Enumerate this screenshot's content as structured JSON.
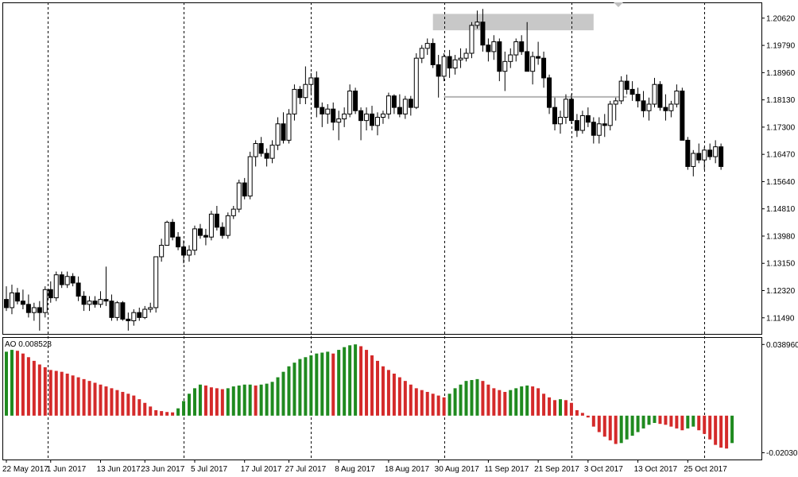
{
  "colors": {
    "background": "#ffffff",
    "frame": "#000000",
    "candle_up_fill": "#ffffff",
    "candle_down_fill": "#000000",
    "ao_up": "#1f8a1f",
    "ao_down": "#d42a2a",
    "zone_fill": "#c8c8c8",
    "hline": "#b4b4b4"
  },
  "indicator": {
    "label": "AO 0.008528"
  },
  "chart_data": [
    {
      "type": "candlestick",
      "title": "",
      "grid": "vertical dashed separators",
      "ylim": [
        1.11,
        1.211
      ],
      "y_ticks": [
        "1.20620",
        "1.19790",
        "1.18960",
        "1.18130",
        "1.17300",
        "1.16470",
        "1.15640",
        "1.14810",
        "1.13980",
        "1.13150",
        "1.12320",
        "1.11490"
      ],
      "x_tick_labels": [
        "22 May 2017",
        "1 Jun 2017",
        "13 Jun 2017",
        "23 Jun 2017",
        "5 Jul 2017",
        "17 Jul 2017",
        "27 Jul 2017",
        "8 Aug 2017",
        "18 Aug 2017",
        "30 Aug 2017",
        "11 Sep 2017",
        "21 Sep 2017",
        "3 Oct 2017",
        "13 Oct 2017",
        "25 Oct 2017"
      ],
      "x_tick_bars": [
        0,
        8,
        17,
        25,
        34,
        43,
        51,
        60,
        69,
        78,
        87,
        96,
        105,
        114,
        123
      ],
      "separator_bars": [
        7.5,
        32,
        55,
        79,
        102,
        126
      ],
      "resistance_zone": {
        "from_bar": 77,
        "to_bar": 106,
        "low": 1.2025,
        "high": 1.2075
      },
      "horizontal_line": {
        "from_bar": 79,
        "to_bar": 112,
        "price": 1.1822
      },
      "candles": [
        [
          1.1205,
          1.1245,
          1.117,
          1.118
        ],
        [
          1.118,
          1.125,
          1.116,
          1.1225
        ],
        [
          1.1225,
          1.124,
          1.119,
          1.12
        ],
        [
          1.12,
          1.1235,
          1.1175,
          1.119
        ],
        [
          1.119,
          1.122,
          1.115,
          1.1165
        ],
        [
          1.1165,
          1.1195,
          1.114,
          1.118
        ],
        [
          1.118,
          1.12,
          1.111,
          1.1165
        ],
        [
          1.1165,
          1.1245,
          1.115,
          1.1235
        ],
        [
          1.1235,
          1.126,
          1.1195,
          1.121
        ],
        [
          1.121,
          1.129,
          1.12,
          1.128
        ],
        [
          1.128,
          1.129,
          1.124,
          1.125
        ],
        [
          1.125,
          1.129,
          1.124,
          1.1275
        ],
        [
          1.1275,
          1.1285,
          1.1245,
          1.1255
        ],
        [
          1.1255,
          1.1275,
          1.12,
          1.1215
        ],
        [
          1.1215,
          1.123,
          1.117,
          1.119
        ],
        [
          1.119,
          1.1215,
          1.117,
          1.12
        ],
        [
          1.12,
          1.1215,
          1.118,
          1.119
        ],
        [
          1.119,
          1.123,
          1.118,
          1.1205
        ],
        [
          1.1205,
          1.1305,
          1.1185,
          1.12
        ],
        [
          1.12,
          1.122,
          1.114,
          1.115
        ],
        [
          1.115,
          1.12,
          1.114,
          1.1195
        ],
        [
          1.1195,
          1.12,
          1.114,
          1.1145
        ],
        [
          1.1145,
          1.1165,
          1.111,
          1.114
        ],
        [
          1.114,
          1.1175,
          1.1125,
          1.1165
        ],
        [
          1.1165,
          1.118,
          1.114,
          1.115
        ],
        [
          1.115,
          1.1185,
          1.1145,
          1.1175
        ],
        [
          1.1175,
          1.1195,
          1.1165,
          1.118
        ],
        [
          1.118,
          1.1335,
          1.1165,
          1.1335
        ],
        [
          1.1335,
          1.139,
          1.132,
          1.137
        ],
        [
          1.137,
          1.1445,
          1.137,
          1.144
        ],
        [
          1.144,
          1.145,
          1.1385,
          1.1395
        ],
        [
          1.1395,
          1.141,
          1.1355,
          1.1365
        ],
        [
          1.1365,
          1.1385,
          1.1315,
          1.134
        ],
        [
          1.134,
          1.137,
          1.132,
          1.1355
        ],
        [
          1.1355,
          1.143,
          1.134,
          1.142
        ],
        [
          1.142,
          1.1435,
          1.139,
          1.14
        ],
        [
          1.14,
          1.142,
          1.137,
          1.1395
        ],
        [
          1.1395,
          1.1475,
          1.1385,
          1.1465
        ],
        [
          1.1465,
          1.149,
          1.1415,
          1.1425
        ],
        [
          1.1425,
          1.144,
          1.139,
          1.14
        ],
        [
          1.14,
          1.147,
          1.139,
          1.146
        ],
        [
          1.146,
          1.149,
          1.145,
          1.148
        ],
        [
          1.148,
          1.157,
          1.147,
          1.156
        ],
        [
          1.156,
          1.1575,
          1.151,
          1.152
        ],
        [
          1.152,
          1.1655,
          1.151,
          1.164
        ],
        [
          1.164,
          1.169,
          1.161,
          1.168
        ],
        [
          1.168,
          1.17,
          1.164,
          1.165
        ],
        [
          1.165,
          1.1665,
          1.161,
          1.1635
        ],
        [
          1.1635,
          1.169,
          1.162,
          1.1675
        ],
        [
          1.1675,
          1.176,
          1.166,
          1.174
        ],
        [
          1.174,
          1.1775,
          1.168,
          1.169
        ],
        [
          1.169,
          1.1785,
          1.168,
          1.177
        ],
        [
          1.177,
          1.186,
          1.175,
          1.1845
        ],
        [
          1.1845,
          1.1855,
          1.18,
          1.182
        ],
        [
          1.182,
          1.1915,
          1.18,
          1.186
        ],
        [
          1.186,
          1.1895,
          1.183,
          1.188
        ],
        [
          1.188,
          1.19,
          1.176,
          1.179
        ],
        [
          1.179,
          1.1805,
          1.173,
          1.177
        ],
        [
          1.177,
          1.18,
          1.174,
          1.1785
        ],
        [
          1.1785,
          1.1805,
          1.172,
          1.1745
        ],
        [
          1.1745,
          1.178,
          1.169,
          1.1755
        ],
        [
          1.1755,
          1.179,
          1.173,
          1.177
        ],
        [
          1.177,
          1.186,
          1.176,
          1.184
        ],
        [
          1.184,
          1.185,
          1.177,
          1.178
        ],
        [
          1.178,
          1.179,
          1.169,
          1.175
        ],
        [
          1.175,
          1.179,
          1.172,
          1.177
        ],
        [
          1.177,
          1.1795,
          1.172,
          1.1735
        ],
        [
          1.1735,
          1.1775,
          1.1705,
          1.176
        ],
        [
          1.176,
          1.178,
          1.174,
          1.177
        ],
        [
          1.177,
          1.1835,
          1.1755,
          1.1825
        ],
        [
          1.1825,
          1.183,
          1.177,
          1.179
        ],
        [
          1.179,
          1.183,
          1.176,
          1.177
        ],
        [
          1.177,
          1.1825,
          1.1755,
          1.1815
        ],
        [
          1.1815,
          1.1825,
          1.1765,
          1.179
        ],
        [
          1.179,
          1.1955,
          1.1785,
          1.194
        ],
        [
          1.194,
          1.198,
          1.1925,
          1.197
        ],
        [
          1.197,
          1.2,
          1.195,
          1.1985
        ],
        [
          1.1985,
          1.2,
          1.191,
          1.192
        ],
        [
          1.192,
          1.195,
          1.182,
          1.1885
        ],
        [
          1.1885,
          1.1955,
          1.187,
          1.1945
        ],
        [
          1.1945,
          1.1965,
          1.188,
          1.191
        ],
        [
          1.191,
          1.195,
          1.189,
          1.1935
        ],
        [
          1.1935,
          1.197,
          1.191,
          1.194
        ],
        [
          1.194,
          1.197,
          1.193,
          1.1955
        ],
        [
          1.1955,
          1.205,
          1.194,
          1.204
        ],
        [
          1.204,
          1.2085,
          1.203,
          1.205
        ],
        [
          1.205,
          1.209,
          1.196,
          1.198
        ],
        [
          1.198,
          1.2,
          1.193,
          1.196
        ],
        [
          1.196,
          1.201,
          1.1935,
          1.199
        ],
        [
          1.199,
          1.2,
          1.187,
          1.19
        ],
        [
          1.19,
          1.196,
          1.184,
          1.193
        ],
        [
          1.193,
          1.197,
          1.191,
          1.195
        ],
        [
          1.195,
          1.2,
          1.193,
          1.199
        ],
        [
          1.199,
          1.201,
          1.195,
          1.196
        ],
        [
          1.196,
          1.205,
          1.19,
          1.19
        ],
        [
          1.19,
          1.196,
          1.186,
          1.1945
        ],
        [
          1.1945,
          1.199,
          1.192,
          1.194
        ],
        [
          1.194,
          1.196,
          1.185,
          1.188
        ],
        [
          1.188,
          1.189,
          1.177,
          1.179
        ],
        [
          1.179,
          1.182,
          1.172,
          1.174
        ],
        [
          1.174,
          1.178,
          1.171,
          1.176
        ],
        [
          1.176,
          1.183,
          1.174,
          1.1815
        ],
        [
          1.1815,
          1.183,
          1.174,
          1.175
        ],
        [
          1.175,
          1.177,
          1.17,
          1.172
        ],
        [
          1.172,
          1.178,
          1.171,
          1.1765
        ],
        [
          1.1765,
          1.179,
          1.173,
          1.1745
        ],
        [
          1.1745,
          1.176,
          1.168,
          1.1705
        ],
        [
          1.1705,
          1.176,
          1.168,
          1.174
        ],
        [
          1.174,
          1.177,
          1.17,
          1.1735
        ],
        [
          1.1735,
          1.181,
          1.172,
          1.18
        ],
        [
          1.18,
          1.182,
          1.175,
          1.181
        ],
        [
          1.181,
          1.1885,
          1.18,
          1.187
        ],
        [
          1.187,
          1.189,
          1.183,
          1.1845
        ],
        [
          1.1845,
          1.187,
          1.181,
          1.183
        ],
        [
          1.183,
          1.185,
          1.179,
          1.181
        ],
        [
          1.181,
          1.184,
          1.176,
          1.178
        ],
        [
          1.178,
          1.182,
          1.175,
          1.18
        ],
        [
          1.18,
          1.188,
          1.179,
          1.186
        ],
        [
          1.186,
          1.187,
          1.178,
          1.179
        ],
        [
          1.179,
          1.183,
          1.175,
          1.178
        ],
        [
          1.178,
          1.181,
          1.176,
          1.18
        ],
        [
          1.18,
          1.186,
          1.179,
          1.184
        ],
        [
          1.184,
          1.185,
          1.17,
          1.169
        ],
        [
          1.169,
          1.17,
          1.16,
          1.161
        ],
        [
          1.161,
          1.166,
          1.158,
          1.165
        ],
        [
          1.165,
          1.168,
          1.162,
          1.163
        ],
        [
          1.163,
          1.167,
          1.16,
          1.166
        ],
        [
          1.166,
          1.168,
          1.163,
          1.164
        ],
        [
          1.164,
          1.169,
          1.162,
          1.167
        ],
        [
          1.167,
          1.168,
          1.16,
          1.161
        ]
      ]
    },
    {
      "type": "bar",
      "title": "AO",
      "y_ticks": [
        "0.038960",
        "-0.020302"
      ],
      "ylim": [
        -0.024,
        0.043
      ],
      "values": [
        0.035,
        0.036,
        0.0355,
        0.034,
        0.032,
        0.03,
        0.028,
        0.0265,
        0.025,
        0.0245,
        0.024,
        0.023,
        0.022,
        0.021,
        0.02,
        0.019,
        0.018,
        0.017,
        0.016,
        0.015,
        0.014,
        0.013,
        0.012,
        0.011,
        0.009,
        0.007,
        0.005,
        0.003,
        0.0025,
        0.002,
        0.0018,
        0.004,
        0.008,
        0.012,
        0.015,
        0.017,
        0.0165,
        0.0155,
        0.015,
        0.0145,
        0.015,
        0.016,
        0.0165,
        0.017,
        0.017,
        0.0165,
        0.017,
        0.0175,
        0.0185,
        0.021,
        0.024,
        0.027,
        0.029,
        0.031,
        0.032,
        0.033,
        0.034,
        0.0345,
        0.035,
        0.034,
        0.036,
        0.0375,
        0.0385,
        0.039,
        0.038,
        0.036,
        0.033,
        0.03,
        0.027,
        0.025,
        0.023,
        0.021,
        0.019,
        0.017,
        0.015,
        0.014,
        0.013,
        0.012,
        0.011,
        0.01,
        0.012,
        0.015,
        0.017,
        0.019,
        0.0195,
        0.02,
        0.019,
        0.017,
        0.015,
        0.014,
        0.013,
        0.014,
        0.015,
        0.016,
        0.0165,
        0.016,
        0.015,
        0.012,
        0.01,
        0.0085,
        0.009,
        0.0085,
        0.007,
        0.003,
        0.0015,
        -0.001,
        -0.006,
        -0.009,
        -0.0115,
        -0.0135,
        -0.0155,
        -0.015,
        -0.013,
        -0.011,
        -0.009,
        -0.007,
        -0.005,
        -0.004,
        -0.0045,
        -0.005,
        -0.006,
        -0.007,
        -0.008,
        -0.007,
        -0.006,
        -0.008,
        -0.01,
        -0.013,
        -0.016,
        -0.0175,
        -0.018,
        -0.015
      ]
    }
  ]
}
